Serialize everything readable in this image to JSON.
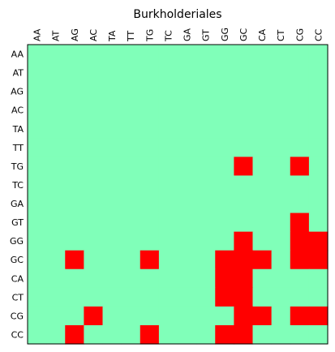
{
  "chart_data": {
    "type": "heatmap",
    "title": "Burkholderiales",
    "x_labels": [
      "AA",
      "AT",
      "AG",
      "AC",
      "TA",
      "TT",
      "TG",
      "TC",
      "GA",
      "GT",
      "GG",
      "GC",
      "CA",
      "CT",
      "CG",
      "CC"
    ],
    "y_labels": [
      "AA",
      "AT",
      "AG",
      "AC",
      "TA",
      "TT",
      "TG",
      "TC",
      "GA",
      "GT",
      "GG",
      "GC",
      "CA",
      "CT",
      "CG",
      "CC"
    ],
    "x_axis_position": "top",
    "grid": false,
    "legend": "none",
    "colors": {
      "zero": "#80ffb9",
      "one": "#ff0000",
      "frame": "#000000"
    },
    "values": [
      [
        0,
        0,
        0,
        0,
        0,
        0,
        0,
        0,
        0,
        0,
        0,
        0,
        0,
        0,
        0,
        0
      ],
      [
        0,
        0,
        0,
        0,
        0,
        0,
        0,
        0,
        0,
        0,
        0,
        0,
        0,
        0,
        0,
        0
      ],
      [
        0,
        0,
        0,
        0,
        0,
        0,
        0,
        0,
        0,
        0,
        0,
        0,
        0,
        0,
        0,
        0
      ],
      [
        0,
        0,
        0,
        0,
        0,
        0,
        0,
        0,
        0,
        0,
        0,
        0,
        0,
        0,
        0,
        0
      ],
      [
        0,
        0,
        0,
        0,
        0,
        0,
        0,
        0,
        0,
        0,
        0,
        0,
        0,
        0,
        0,
        0
      ],
      [
        0,
        0,
        0,
        0,
        0,
        0,
        0,
        0,
        0,
        0,
        0,
        0,
        0,
        0,
        0,
        0
      ],
      [
        0,
        0,
        0,
        0,
        0,
        0,
        0,
        0,
        0,
        0,
        0,
        1,
        0,
        0,
        1,
        0
      ],
      [
        0,
        0,
        0,
        0,
        0,
        0,
        0,
        0,
        0,
        0,
        0,
        0,
        0,
        0,
        0,
        0
      ],
      [
        0,
        0,
        0,
        0,
        0,
        0,
        0,
        0,
        0,
        0,
        0,
        0,
        0,
        0,
        0,
        0
      ],
      [
        0,
        0,
        0,
        0,
        0,
        0,
        0,
        0,
        0,
        0,
        0,
        0,
        0,
        0,
        1,
        0
      ],
      [
        0,
        0,
        0,
        0,
        0,
        0,
        0,
        0,
        0,
        0,
        0,
        1,
        0,
        0,
        1,
        1
      ],
      [
        0,
        0,
        1,
        0,
        0,
        0,
        1,
        0,
        0,
        0,
        1,
        1,
        1,
        0,
        1,
        1
      ],
      [
        0,
        0,
        0,
        0,
        0,
        0,
        0,
        0,
        0,
        0,
        1,
        1,
        0,
        0,
        0,
        0
      ],
      [
        0,
        0,
        0,
        0,
        0,
        0,
        0,
        0,
        0,
        0,
        1,
        1,
        0,
        0,
        0,
        0
      ],
      [
        0,
        0,
        0,
        1,
        0,
        0,
        0,
        0,
        0,
        0,
        0,
        1,
        1,
        0,
        1,
        1
      ],
      [
        0,
        0,
        1,
        0,
        0,
        0,
        1,
        0,
        0,
        0,
        1,
        1,
        0,
        0,
        0,
        0
      ]
    ]
  }
}
